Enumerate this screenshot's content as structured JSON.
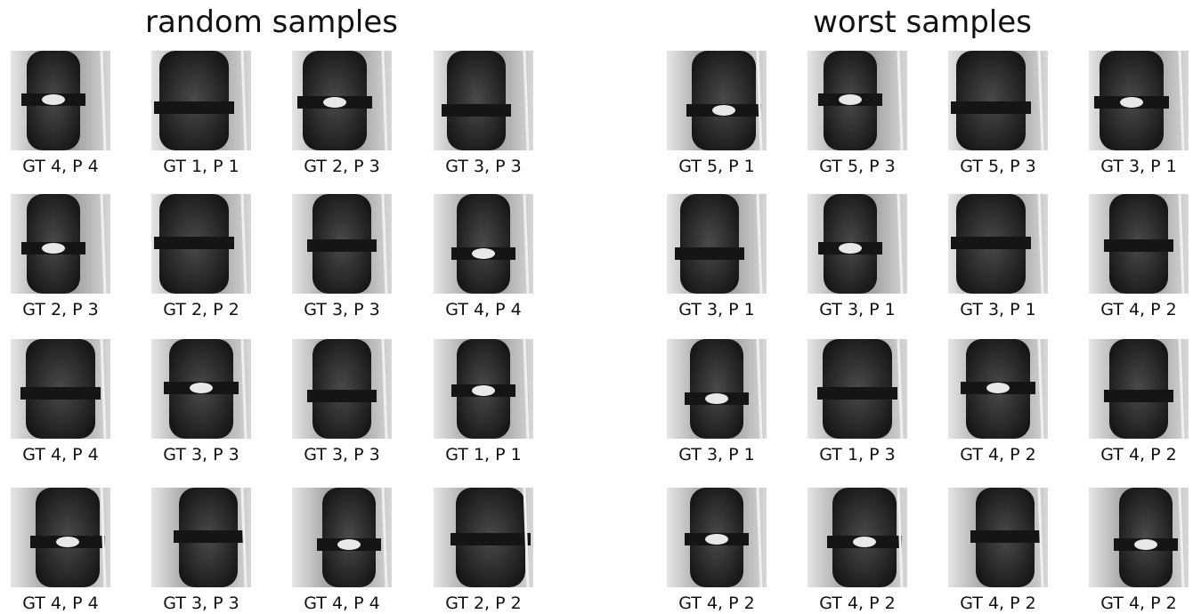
{
  "panels": [
    {
      "title": "random samples",
      "captions": [
        "GT 4, P 4",
        "GT 1, P 1",
        "GT 2, P 3",
        "GT 3, P 3",
        "GT 2, P 3",
        "GT 2, P 2",
        "GT 3, P 3",
        "GT 4, P 4",
        "GT 4, P 4",
        "GT 3, P 3",
        "GT 3, P 3",
        "GT 1, P 1",
        "GT 4, P 4",
        "GT 3, P 3",
        "GT 4, P 4",
        "GT 2, P 2"
      ]
    },
    {
      "title": "worst samples",
      "captions": [
        "GT 5, P 1",
        "GT 5, P 3",
        "GT 5, P 3",
        "GT 3, P 1",
        "GT 3, P 1",
        "GT 3, P 1",
        "GT 3, P 1",
        "GT 4, P 2",
        "GT 3, P 1",
        "GT 1, P 3",
        "GT 4, P 2",
        "GT 4, P 2",
        "GT 4, P 2",
        "GT 4, P 2",
        "GT 4, P 2",
        "GT 4, P 2"
      ]
    }
  ]
}
